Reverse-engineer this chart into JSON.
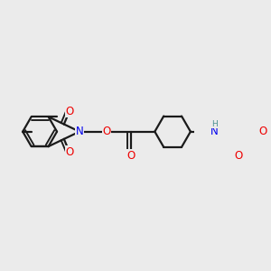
{
  "bg": "#ebebeb",
  "bc": "#1a1a1a",
  "bw": 1.6,
  "dbo": 0.012,
  "atom_colors": {
    "N": "#0000ee",
    "O": "#ee0000",
    "H": "#4a9090",
    "C": "#1a1a1a"
  },
  "fs": 8.5,
  "fsH": 6.5
}
